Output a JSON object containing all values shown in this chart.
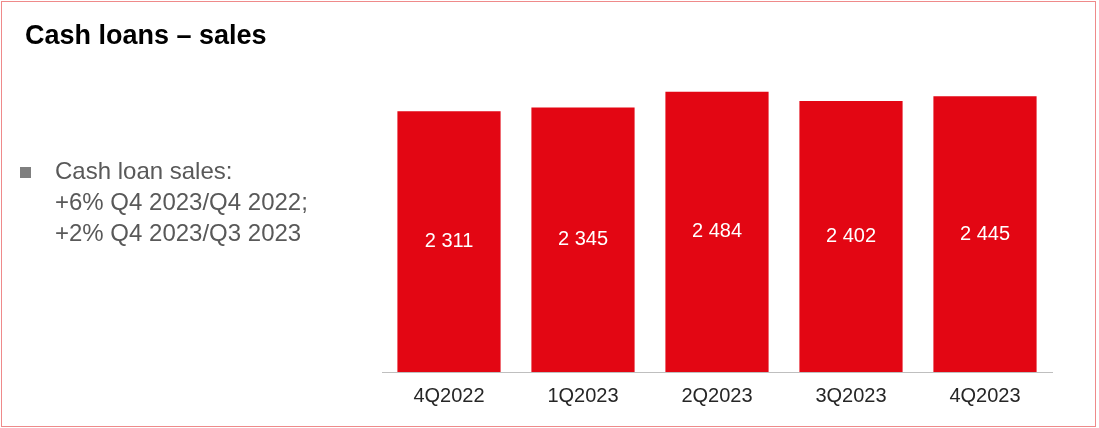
{
  "chart_data": {
    "type": "bar",
    "title": "Cash loans – sales",
    "annotations": [
      "Cash loan sales:\n+6% Q4 2023/Q4 2022;\n+2% Q4 2023/Q3 2023"
    ],
    "categories": [
      "4Q2022",
      "1Q2023",
      "2Q2023",
      "3Q2023",
      "4Q2023"
    ],
    "values": [
      2311,
      2345,
      2484,
      2402,
      2445
    ],
    "color": "#e30613",
    "value_labels": [
      "2 311",
      "2 345",
      "2 484",
      "2 402",
      "2 445"
    ],
    "tick_labels": "x",
    "grid": false,
    "legend": false
  }
}
